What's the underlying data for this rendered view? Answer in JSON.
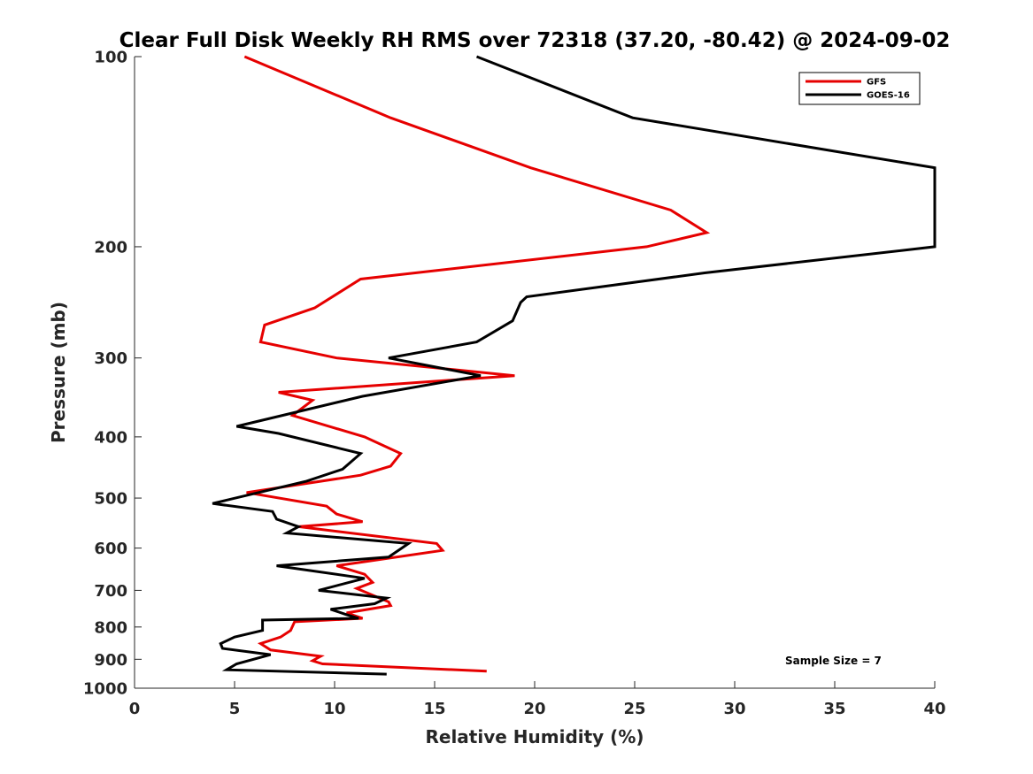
{
  "chart_data": {
    "type": "line",
    "title": "Clear Full Disk Weekly RH RMS over 72318 (37.20, -80.42) @ 2024-09-02",
    "xlabel": "Relative Humidity (%)",
    "ylabel": "Pressure (mb)",
    "xlim": [
      0,
      40
    ],
    "ylim": [
      100,
      1000
    ],
    "y_scale": "log",
    "y_reversed": true,
    "xticks": [
      0,
      5,
      10,
      15,
      20,
      25,
      30,
      35,
      40
    ],
    "xtick_labels": [
      "0",
      "5",
      "10",
      "15",
      "20",
      "25",
      "30",
      "35",
      "40"
    ],
    "yticks": [
      100,
      200,
      300,
      400,
      500,
      600,
      700,
      800,
      900,
      1000
    ],
    "ytick_labels": [
      "100",
      "200",
      "300",
      "400",
      "500",
      "600",
      "700",
      "800",
      "900",
      "1000"
    ],
    "grid": false,
    "legend": {
      "placement": "top-right"
    },
    "annotation": "Sample Size = 7",
    "series": [
      {
        "name": "GFS",
        "color": "#e60000",
        "points": [
          [
            5.5,
            100
          ],
          [
            12.8,
            125
          ],
          [
            19.8,
            150
          ],
          [
            26.8,
            175
          ],
          [
            28.6,
            190
          ],
          [
            25.6,
            200
          ],
          [
            11.3,
            225
          ],
          [
            9.0,
            250
          ],
          [
            6.5,
            266
          ],
          [
            6.3,
            283
          ],
          [
            10.1,
            300
          ],
          [
            19.0,
            320
          ],
          [
            7.2,
            340
          ],
          [
            8.9,
            350
          ],
          [
            7.9,
            370
          ],
          [
            11.5,
            400
          ],
          [
            13.3,
            425
          ],
          [
            12.8,
            445
          ],
          [
            11.3,
            460
          ],
          [
            5.6,
            490
          ],
          [
            9.6,
            515
          ],
          [
            10.1,
            530
          ],
          [
            11.4,
            545
          ],
          [
            8.2,
            555
          ],
          [
            15.1,
            590
          ],
          [
            15.4,
            605
          ],
          [
            10.1,
            640
          ],
          [
            11.5,
            660
          ],
          [
            11.9,
            680
          ],
          [
            11.1,
            695
          ],
          [
            12.7,
            730
          ],
          [
            12.8,
            740
          ],
          [
            10.6,
            760
          ],
          [
            11.4,
            775
          ],
          [
            8.0,
            785
          ],
          [
            7.8,
            810
          ],
          [
            7.3,
            830
          ],
          [
            6.3,
            850
          ],
          [
            6.8,
            870
          ],
          [
            9.3,
            890
          ],
          [
            8.9,
            905
          ],
          [
            9.4,
            915
          ],
          [
            17.6,
            940
          ]
        ]
      },
      {
        "name": "GOES-16",
        "color": "#000000",
        "points": [
          [
            17.1,
            100
          ],
          [
            24.9,
            125
          ],
          [
            40.0,
            150
          ],
          [
            40.0,
            200
          ],
          [
            28.5,
            220
          ],
          [
            19.6,
            240
          ],
          [
            19.3,
            245
          ],
          [
            18.9,
            262
          ],
          [
            17.1,
            283
          ],
          [
            12.7,
            300
          ],
          [
            17.3,
            320
          ],
          [
            11.4,
            345
          ],
          [
            5.1,
            385
          ],
          [
            7.2,
            395
          ],
          [
            11.3,
            425
          ],
          [
            10.4,
            450
          ],
          [
            8.6,
            470
          ],
          [
            3.9,
            510
          ],
          [
            6.9,
            525
          ],
          [
            7.1,
            540
          ],
          [
            8.2,
            555
          ],
          [
            7.6,
            568
          ],
          [
            13.7,
            590
          ],
          [
            12.7,
            620
          ],
          [
            7.1,
            640
          ],
          [
            11.5,
            670
          ],
          [
            9.2,
            700
          ],
          [
            12.6,
            720
          ],
          [
            12.0,
            735
          ],
          [
            9.8,
            750
          ],
          [
            10.6,
            765
          ],
          [
            11.2,
            775
          ],
          [
            6.4,
            780
          ],
          [
            6.4,
            810
          ],
          [
            5.0,
            830
          ],
          [
            4.3,
            850
          ],
          [
            4.4,
            865
          ],
          [
            6.8,
            885
          ],
          [
            5.1,
            915
          ],
          [
            4.6,
            935
          ],
          [
            12.6,
            950
          ]
        ]
      }
    ]
  }
}
